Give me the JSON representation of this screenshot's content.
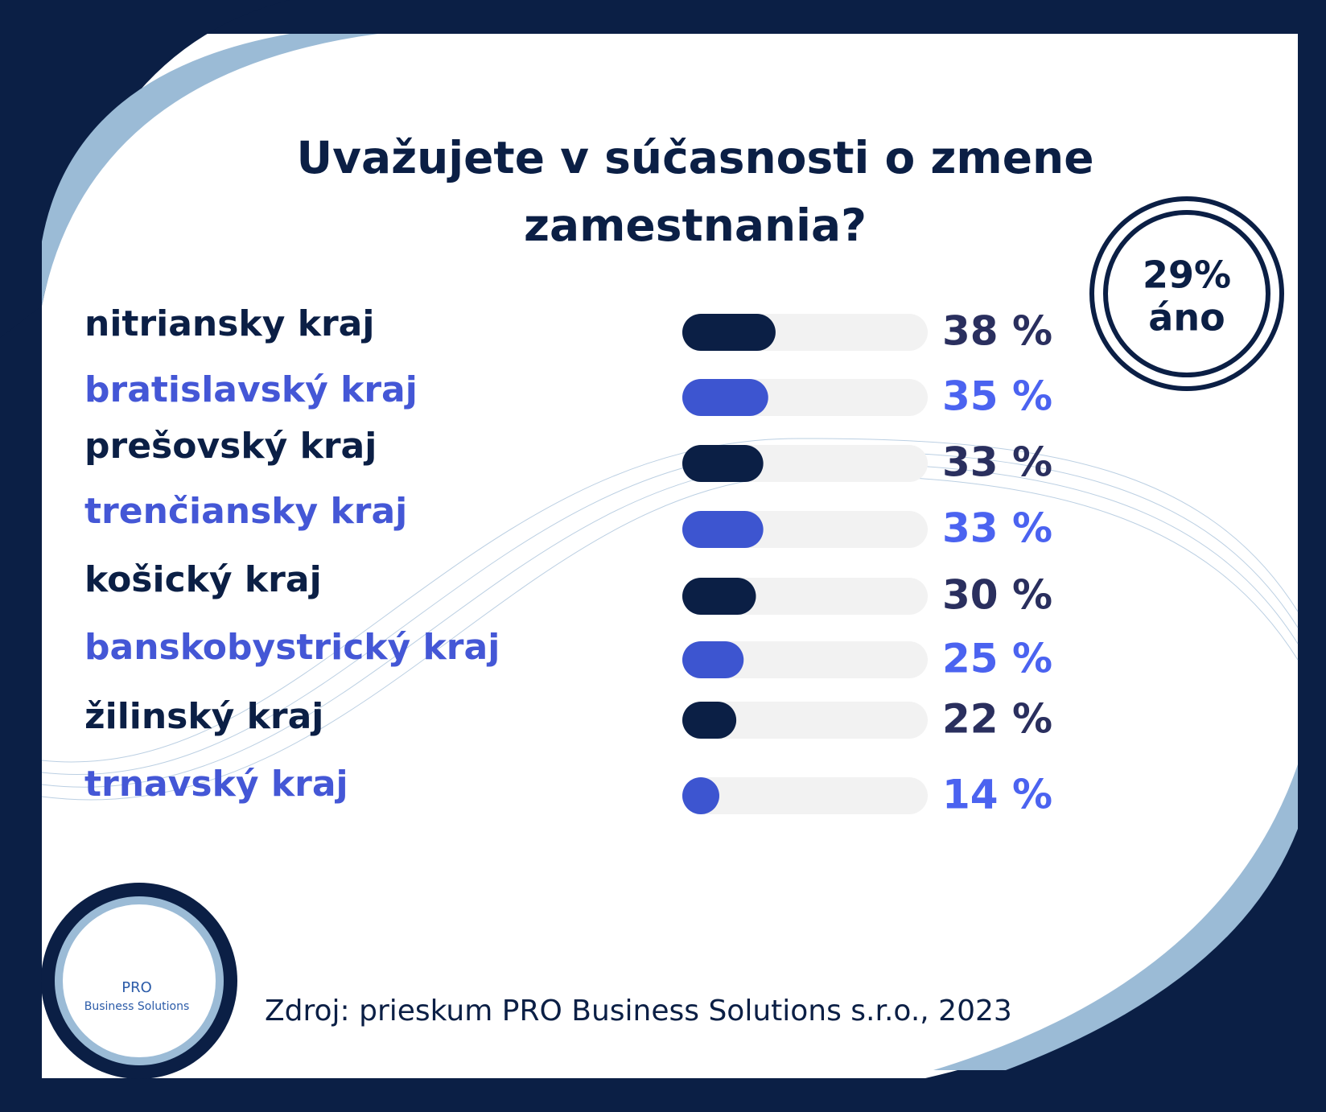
{
  "chart_data": {
    "type": "bar",
    "orientation": "horizontal",
    "title": [
      "Uvažujete v súčasnosti o zmene",
      "zamestnania?"
    ],
    "badge": {
      "value": "29%",
      "label": "áno"
    },
    "categories": [
      "nitriansky kraj",
      "bratislavský kraj",
      "prešovský  kraj",
      "trenčiansky kraj",
      "košický kraj",
      "banskobystrický kraj",
      "žilinský kraj",
      "trnavský kraj"
    ],
    "values": [
      38,
      35,
      33,
      33,
      30,
      25,
      22,
      14
    ],
    "value_labels": [
      "38 %",
      "35 %",
      "33 %",
      "33 %",
      "30 %",
      "25 %",
      "22 %",
      "14 %"
    ],
    "colors": [
      "#0b1f45",
      "#3d55d0",
      "#0b1f45",
      "#3d55d0",
      "#0b1f45",
      "#3d55d0",
      "#0b1f45",
      "#3d55d0"
    ],
    "label_colors": [
      "#0b1f45",
      "#4457d6",
      "#0b1f45",
      "#4457d6",
      "#0b1f45",
      "#4457d6",
      "#0b1f45",
      "#4457d6"
    ],
    "value_label_colors": [
      "#2a2f5e",
      "#4b63f0",
      "#2a2f5e",
      "#4b63f0",
      "#2a2f5e",
      "#4b63f0",
      "#2a2f5e",
      "#4b63f0"
    ],
    "xlim": [
      0,
      100
    ],
    "source": "Zdroj: prieskum PRO Business Solutions s.r.o., 2023",
    "logo": [
      "PRO",
      "Business Solutions"
    ]
  }
}
